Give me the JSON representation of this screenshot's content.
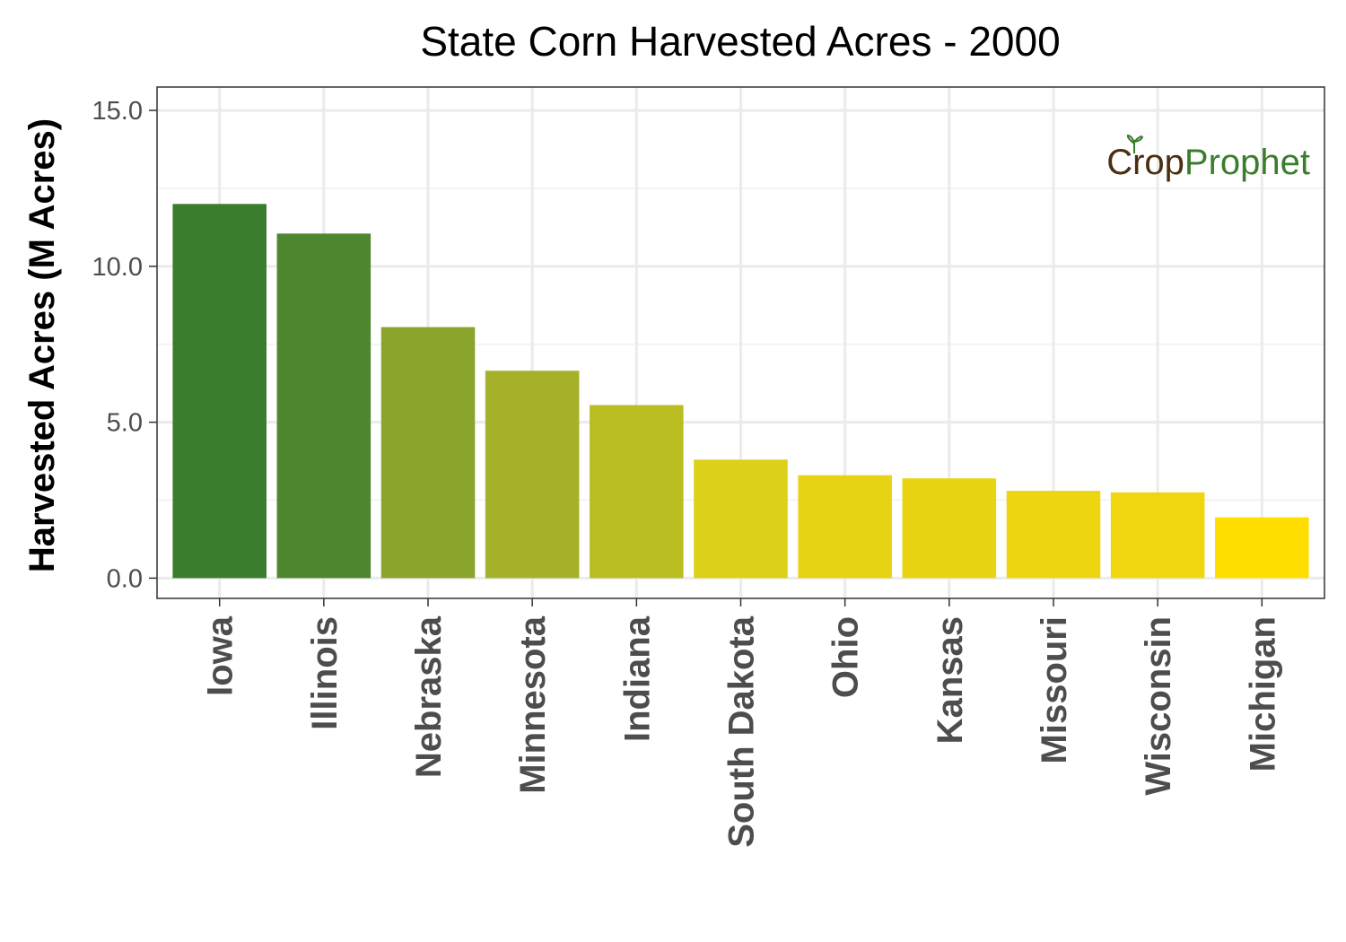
{
  "chart_data": {
    "type": "bar",
    "title": "State Corn Harvested Acres - 2000",
    "xlabel": "",
    "ylabel": "Harvested Acres (M Acres)",
    "ylim": [
      -0.65,
      15.75
    ],
    "yticks": [
      0,
      5,
      10,
      15
    ],
    "ytick_labels": [
      "0.0",
      "5.0",
      "10.0",
      "15.0"
    ],
    "grid": true,
    "categories": [
      "Iowa",
      "Illinois",
      "Nebraska",
      "Minnesota",
      "Indiana",
      "South Dakota",
      "Ohio",
      "Kansas",
      "Missouri",
      "Wisconsin",
      "Michigan"
    ],
    "values": [
      12.0,
      11.05,
      8.05,
      6.65,
      5.55,
      3.8,
      3.3,
      3.2,
      2.8,
      2.75,
      1.95
    ],
    "colors": [
      "#3a7d2c",
      "#4f872e",
      "#8aa42c",
      "#a5b128",
      "#babd22",
      "#ddd018",
      "#e6d314",
      "#e9d414",
      "#eed512",
      "#f0d610",
      "#ffde00"
    ]
  },
  "logo": {
    "part1": "Crop",
    "part2": "Prophet"
  }
}
